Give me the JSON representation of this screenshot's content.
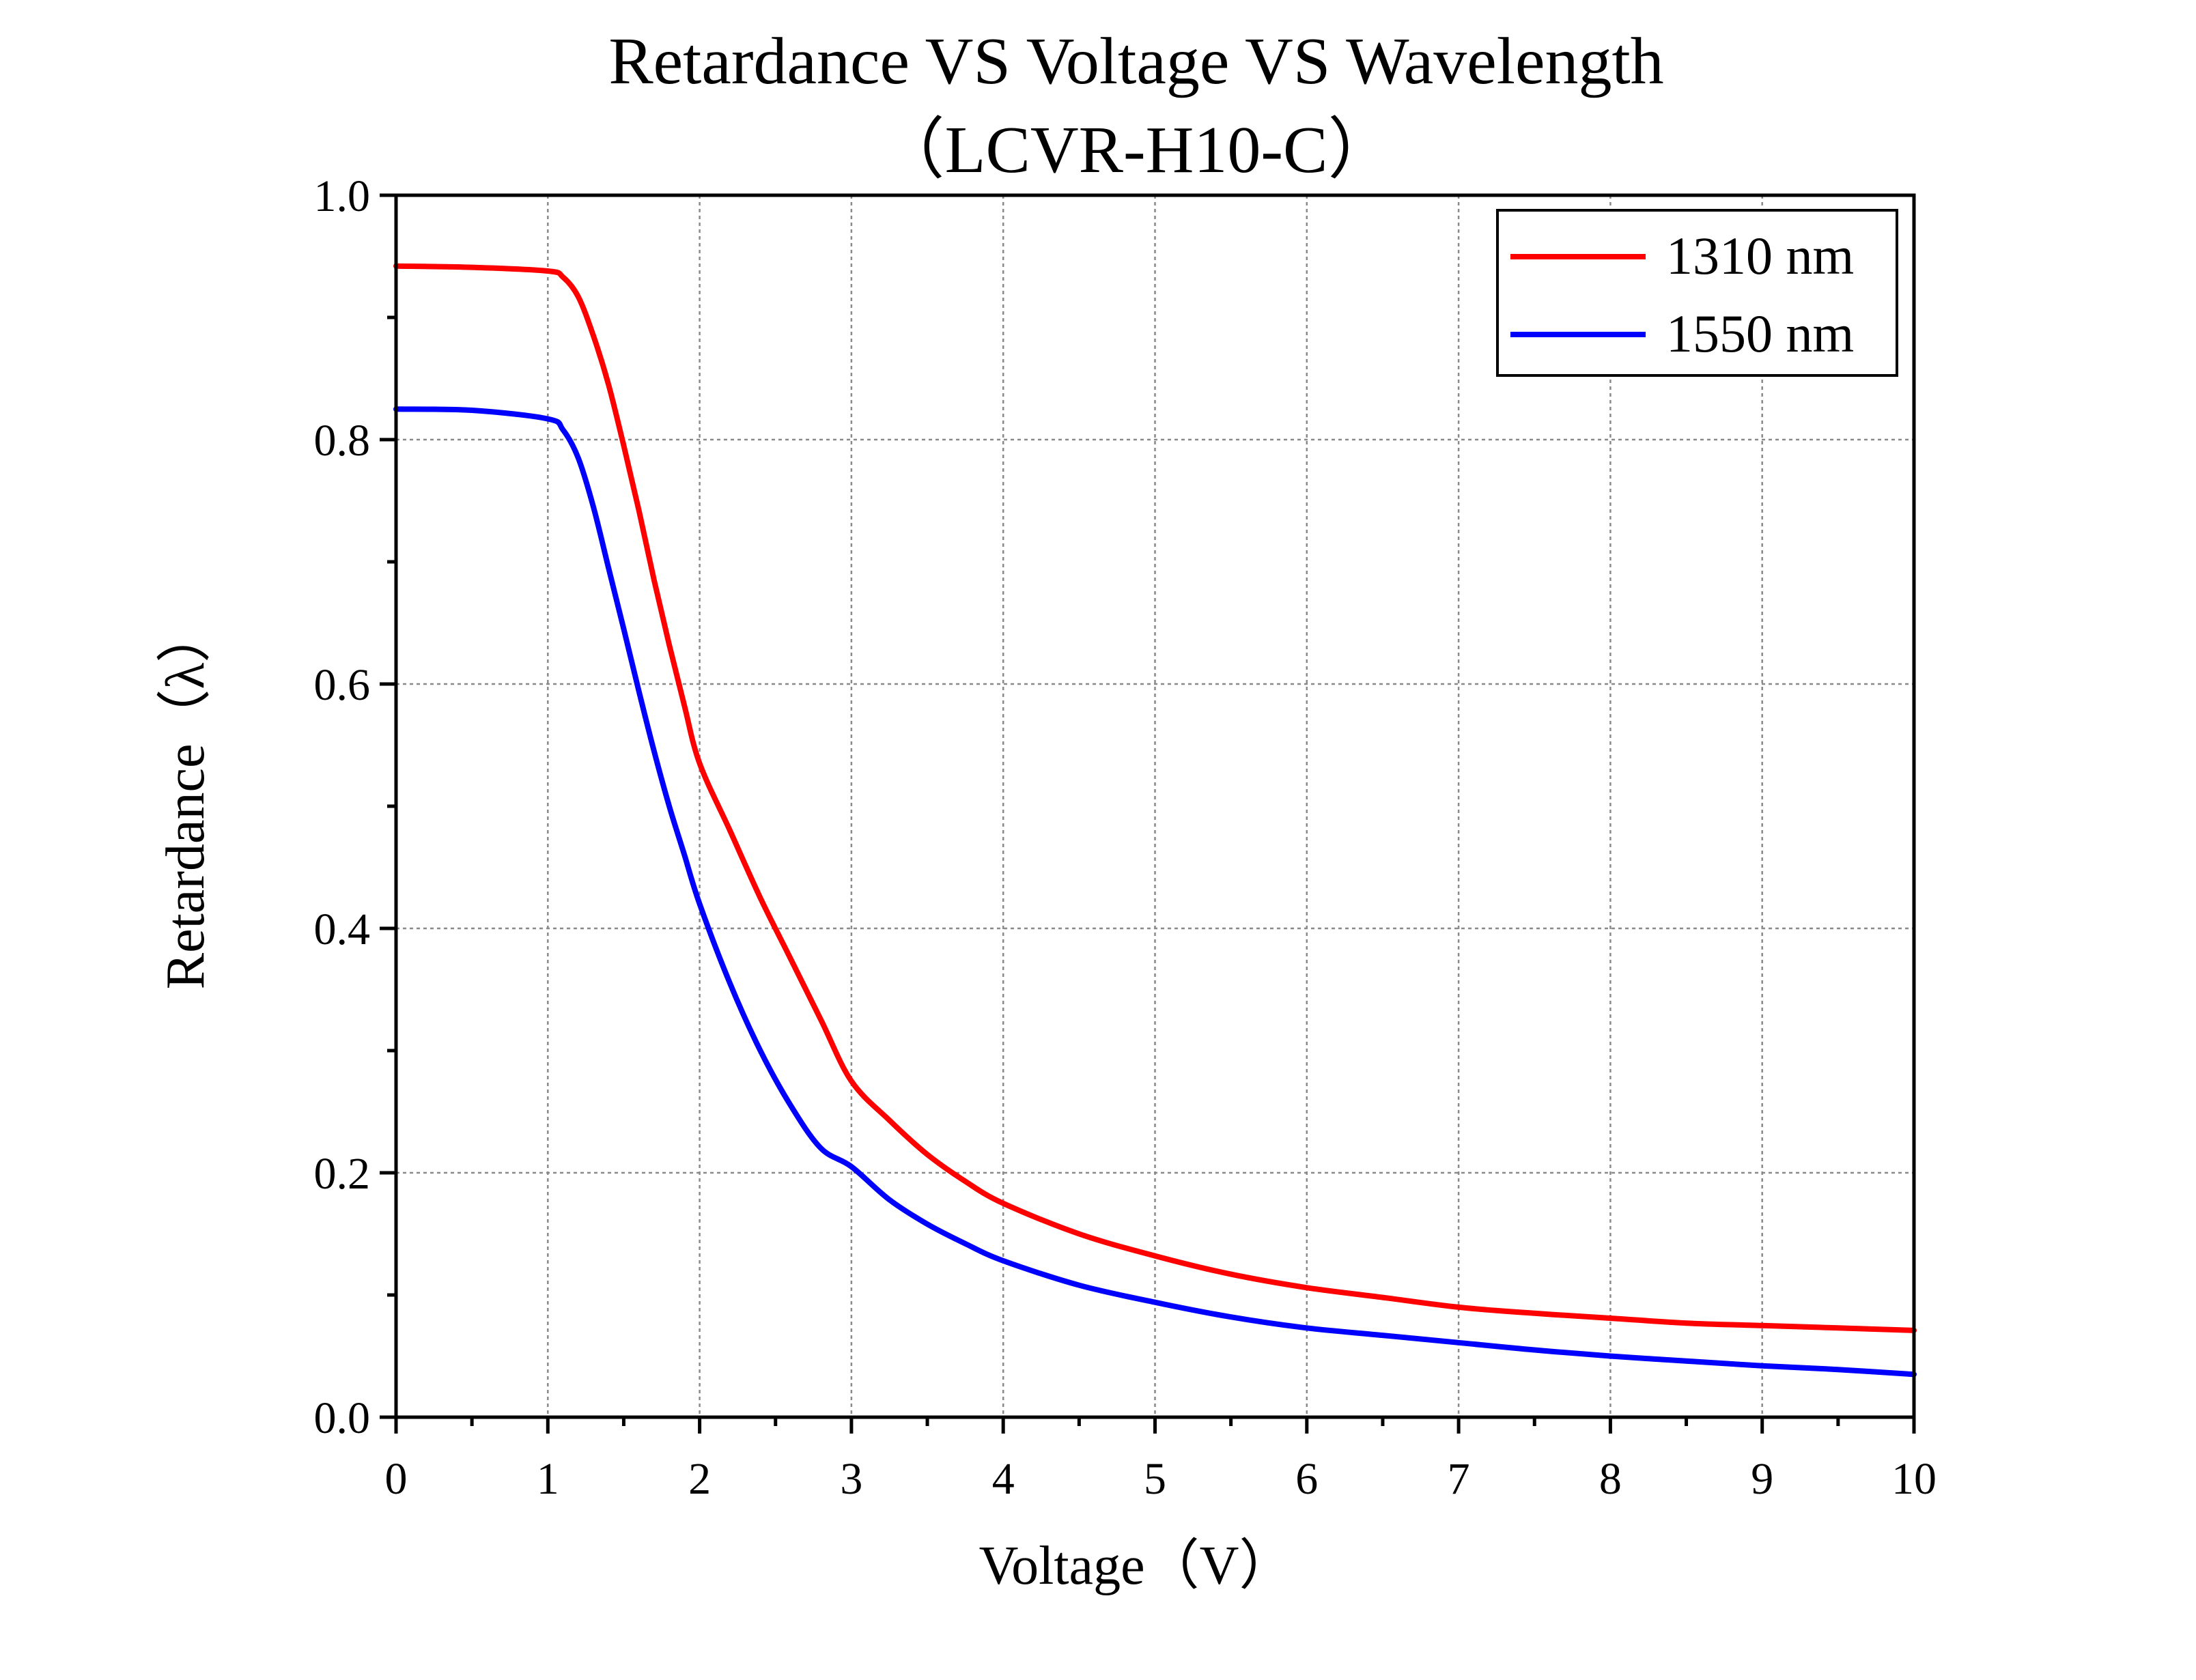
{
  "chart_data": {
    "type": "line",
    "title": "Retardance VS Voltage VS Wavelength",
    "subtitle": "（LCVR-H10-C）",
    "xlabel": "Voltage（V）",
    "ylabel": "Retardance（λ）",
    "xlim": [
      0,
      10
    ],
    "ylim": [
      0,
      1.0
    ],
    "xticks": [
      0,
      1,
      2,
      3,
      4,
      5,
      6,
      7,
      8,
      9,
      10
    ],
    "xtick_labels": [
      "0",
      "1",
      "2",
      "3",
      "4",
      "5",
      "6",
      "7",
      "8",
      "9",
      "10"
    ],
    "yticks": [
      0,
      0.2,
      0.4,
      0.6,
      0.8,
      1.0
    ],
    "ytick_labels": [
      "0.0",
      "0.2",
      "0.4",
      "0.6",
      "0.8",
      "1.0"
    ],
    "grid": true,
    "grid_style": "dotted",
    "legend_position": "top-right",
    "series": [
      {
        "name": "1310 nm",
        "color": "#ff0000",
        "x": [
          0,
          0.5,
          1.0,
          1.1,
          1.2,
          1.3,
          1.4,
          1.5,
          1.6,
          1.7,
          1.8,
          1.9,
          2.0,
          2.2,
          2.4,
          2.6,
          2.8,
          3.0,
          3.25,
          3.5,
          3.75,
          4.0,
          4.5,
          5.0,
          5.5,
          6.0,
          6.5,
          7.0,
          7.5,
          8.0,
          8.5,
          9.0,
          9.5,
          10.0
        ],
        "y": [
          0.942,
          0.941,
          0.938,
          0.933,
          0.917,
          0.885,
          0.845,
          0.795,
          0.742,
          0.685,
          0.632,
          0.582,
          0.535,
          0.48,
          0.425,
          0.375,
          0.325,
          0.275,
          0.243,
          0.215,
          0.193,
          0.175,
          0.15,
          0.132,
          0.117,
          0.106,
          0.098,
          0.09,
          0.085,
          0.081,
          0.077,
          0.075,
          0.073,
          0.071
        ]
      },
      {
        "name": "1550 nm",
        "color": "#0000ff",
        "x": [
          0,
          0.5,
          1.0,
          1.1,
          1.2,
          1.3,
          1.4,
          1.5,
          1.6,
          1.7,
          1.8,
          1.9,
          2.0,
          2.2,
          2.4,
          2.6,
          2.8,
          3.0,
          3.25,
          3.5,
          3.75,
          4.0,
          4.5,
          5.0,
          5.5,
          6.0,
          6.5,
          7.0,
          7.5,
          8.0,
          8.5,
          9.0,
          9.5,
          10.0
        ],
        "y": [
          0.825,
          0.824,
          0.817,
          0.808,
          0.785,
          0.745,
          0.695,
          0.645,
          0.594,
          0.545,
          0.5,
          0.46,
          0.42,
          0.355,
          0.3,
          0.255,
          0.22,
          0.205,
          0.178,
          0.158,
          0.142,
          0.128,
          0.108,
          0.094,
          0.082,
          0.073,
          0.067,
          0.061,
          0.055,
          0.05,
          0.046,
          0.042,
          0.039,
          0.035
        ]
      }
    ]
  }
}
